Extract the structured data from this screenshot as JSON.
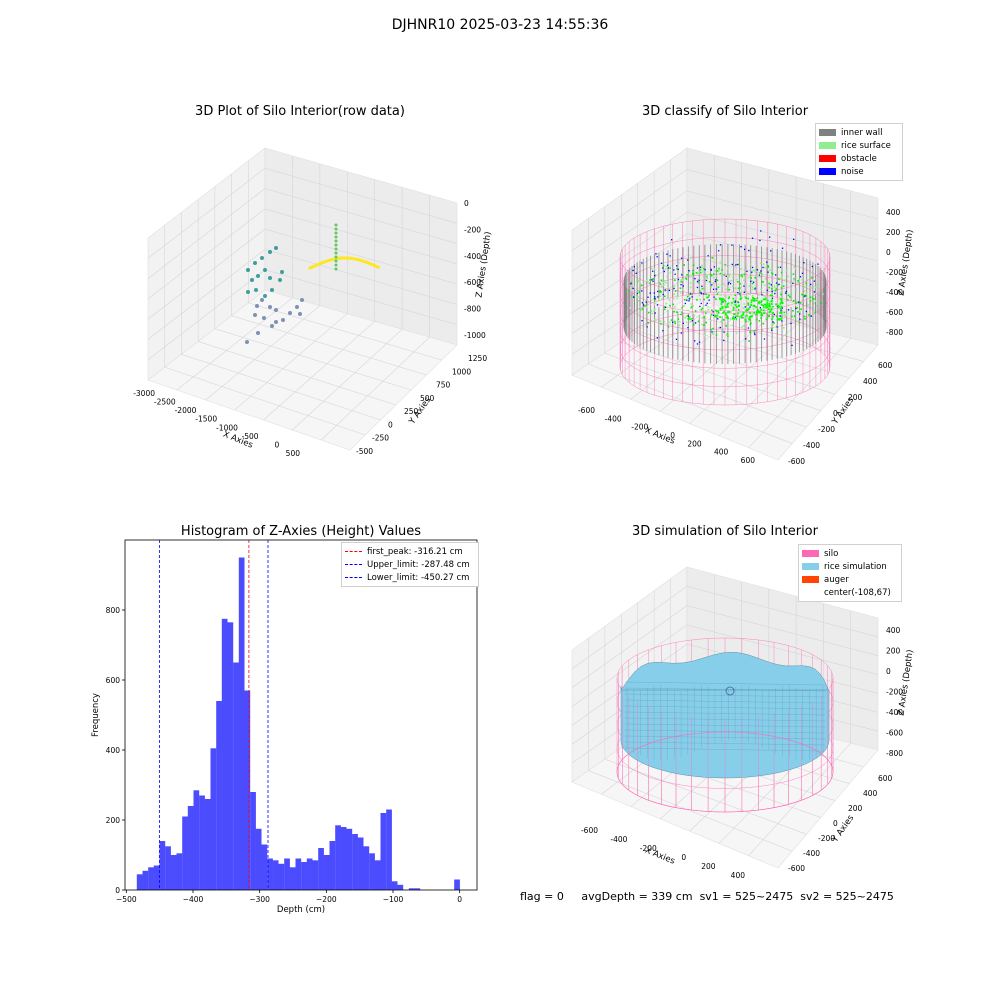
{
  "figure": {
    "suptitle": "DJHNR10 2025-03-23 14:55:36",
    "status_line": {
      "flag": "flag = 0",
      "avg_depth": "avgDepth = 339 cm",
      "sv1": "sv1 = 525~2475",
      "sv2": "sv2 = 525~2475"
    }
  },
  "panels": {
    "raw": {
      "title": "3D Plot of Silo Interior(row data)",
      "xlabel": "X Axies",
      "ylabel": "Y Axies",
      "zlabel": "Z Axies (Depth)",
      "xticks": [
        "-3000",
        "-2500",
        "-2000",
        "-1500",
        "-1000",
        "-500",
        "0",
        "500"
      ],
      "yticks": [
        "-500",
        "-250",
        "0",
        "250",
        "500",
        "750",
        "1000",
        "1250"
      ],
      "zticks": [
        "0",
        "-200",
        "-400",
        "-600",
        "-800",
        "-1000"
      ],
      "colormap": [
        "#440154",
        "#21918c",
        "#5ec962",
        "#fde725"
      ]
    },
    "classify": {
      "title": "3D classify of Silo Interior",
      "xlabel": "X Axies",
      "ylabel": "Y Axies",
      "zlabel": "Z Axies (Depth)",
      "xticks": [
        "-600",
        "-400",
        "-200",
        "0",
        "200",
        "400",
        "600"
      ],
      "yticks": [
        "-600",
        "-400",
        "-200",
        "0",
        "200",
        "400",
        "600"
      ],
      "zticks": [
        "400",
        "200",
        "0",
        "-200",
        "-400",
        "-600",
        "-800"
      ],
      "legend": [
        {
          "label": "inner wall",
          "color": "#808080"
        },
        {
          "label": "rice surface",
          "color": "#90ee90"
        },
        {
          "label": "obstacle",
          "color": "#ff0000"
        },
        {
          "label": "noise",
          "color": "#0000ff"
        }
      ],
      "wire_color": "#ff69b4"
    },
    "simulation": {
      "title": "3D simulation of Silo Interior",
      "xlabel": "X Axies",
      "ylabel": "Y Axies",
      "zlabel": "Z Axies (Depth)",
      "xticks": [
        "-600",
        "-400",
        "-200",
        "0",
        "200",
        "400"
      ],
      "yticks": [
        "-600",
        "-400",
        "-200",
        "0",
        "200",
        "400",
        "600"
      ],
      "zticks": [
        "400",
        "200",
        "0",
        "-200",
        "-400",
        "-600",
        "-800"
      ],
      "legend": [
        {
          "label": "silo",
          "color": "#ff69b4"
        },
        {
          "label": "rice simulation",
          "color": "#87ceeb"
        },
        {
          "label": "auger",
          "color": "#ff4500"
        },
        {
          "label": "center(-108,67)",
          "color": "none"
        }
      ]
    }
  },
  "chart_data": [
    {
      "type": "bar",
      "title": "Histogram of Z-Axies (Height) Values",
      "xlabel": "Depth (cm)",
      "ylabel": "Frequency",
      "xlim": [
        -502,
        26
      ],
      "ylim": [
        0,
        1000
      ],
      "xticks": [
        -500,
        -400,
        -300,
        -200,
        -100,
        0
      ],
      "yticks": [
        0,
        200,
        400,
        600,
        800
      ],
      "bar_color": "#0000ff",
      "bin_width": 8.5,
      "bins": [
        [
          -480,
          45
        ],
        [
          -471.5,
          55
        ],
        [
          -463,
          65
        ],
        [
          -454.5,
          70
        ],
        [
          -446,
          140
        ],
        [
          -437.5,
          125
        ],
        [
          -429,
          100
        ],
        [
          -420.5,
          105
        ],
        [
          -412,
          210
        ],
        [
          -403.5,
          240
        ],
        [
          -395,
          285
        ],
        [
          -386.5,
          270
        ],
        [
          -378,
          260
        ],
        [
          -369.5,
          405
        ],
        [
          -361,
          540
        ],
        [
          -352.5,
          775
        ],
        [
          -344,
          765
        ],
        [
          -335.5,
          650
        ],
        [
          -327,
          950
        ],
        [
          -318.5,
          570
        ],
        [
          -310,
          280
        ],
        [
          -301.5,
          175
        ],
        [
          -293,
          130
        ],
        [
          -284.5,
          90
        ],
        [
          -276,
          85
        ],
        [
          -267.5,
          75
        ],
        [
          -259,
          90
        ],
        [
          -250.5,
          65
        ],
        [
          -242,
          90
        ],
        [
          -233.5,
          80
        ],
        [
          -225,
          90
        ],
        [
          -216.5,
          85
        ],
        [
          -208,
          120
        ],
        [
          -199.5,
          100
        ],
        [
          -191,
          140
        ],
        [
          -182.5,
          185
        ],
        [
          -174,
          180
        ],
        [
          -165.5,
          175
        ],
        [
          -157,
          160
        ],
        [
          -148.5,
          150
        ],
        [
          -140,
          125
        ],
        [
          -131.5,
          105
        ],
        [
          -123,
          85
        ],
        [
          -114.5,
          220
        ],
        [
          -106,
          230
        ],
        [
          -97.5,
          25
        ],
        [
          -89,
          15
        ],
        [
          -80.5,
          0
        ],
        [
          -72,
          5
        ],
        [
          -63.5,
          5
        ],
        [
          -55,
          0
        ],
        [
          -46.5,
          0
        ],
        [
          -38,
          0
        ],
        [
          -29.5,
          0
        ],
        [
          -4,
          30
        ]
      ],
      "lines": [
        {
          "label": "first_peak: -316.21 cm",
          "x": -316.21,
          "color": "#ff0000"
        },
        {
          "label": "Upper_limit: -287.48 cm",
          "x": -287.48,
          "color": "#0000ff"
        },
        {
          "label": "Lower_limit: -450.27 cm",
          "x": -450.27,
          "color": "#0000ff"
        }
      ]
    }
  ]
}
